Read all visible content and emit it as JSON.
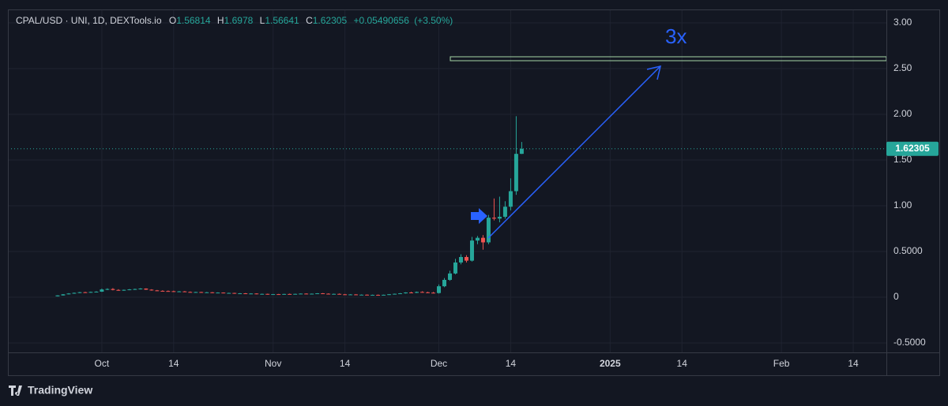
{
  "chart_data": {
    "type": "candlestick",
    "title": "CPAL/USD · UNI, 1D, DEXTools.io",
    "ohlc_labels": [
      "O",
      "H",
      "L",
      "C"
    ],
    "change": {
      "value": 0.05490656,
      "label": "+0.05490656"
    },
    "change_percent": {
      "value": 3.5,
      "label": "(+3.50%)"
    },
    "annotation": "3x",
    "footer": "TradingView",
    "up_color": "#26a69a",
    "down_color": "#ef5350",
    "grid": true,
    "x": [
      "2024-09-23",
      "2024-09-24",
      "2024-09-25",
      "2024-09-26",
      "2024-09-27",
      "2024-09-28",
      "2024-09-29",
      "2024-09-30",
      "2024-10-01",
      "2024-10-02",
      "2024-10-03",
      "2024-10-04",
      "2024-10-05",
      "2024-10-06",
      "2024-10-07",
      "2024-10-08",
      "2024-10-09",
      "2024-10-10",
      "2024-10-11",
      "2024-10-12",
      "2024-10-13",
      "2024-10-14",
      "2024-10-15",
      "2024-10-16",
      "2024-10-17",
      "2024-10-18",
      "2024-10-19",
      "2024-10-20",
      "2024-10-21",
      "2024-10-22",
      "2024-10-23",
      "2024-10-24",
      "2024-10-25",
      "2024-10-26",
      "2024-10-27",
      "2024-10-28",
      "2024-10-29",
      "2024-10-30",
      "2024-10-31",
      "2024-11-01",
      "2024-11-02",
      "2024-11-03",
      "2024-11-04",
      "2024-11-05",
      "2024-11-06",
      "2024-11-07",
      "2024-11-08",
      "2024-11-09",
      "2024-11-10",
      "2024-11-11",
      "2024-11-12",
      "2024-11-13",
      "2024-11-14",
      "2024-11-15",
      "2024-11-16",
      "2024-11-17",
      "2024-11-18",
      "2024-11-19",
      "2024-11-20",
      "2024-11-21",
      "2024-11-22",
      "2024-11-23",
      "2024-11-24",
      "2024-11-25",
      "2024-11-26",
      "2024-11-27",
      "2024-11-28",
      "2024-11-29",
      "2024-11-30",
      "2024-12-01",
      "2024-12-02",
      "2024-12-03",
      "2024-12-04",
      "2024-12-05",
      "2024-12-06",
      "2024-12-07",
      "2024-12-08",
      "2024-12-09",
      "2024-12-10",
      "2024-12-11",
      "2024-12-12",
      "2024-12-13",
      "2024-12-14",
      "2024-12-15",
      "2024-12-16"
    ],
    "open": [
      0.01,
      0.02,
      0.032,
      0.041,
      0.048,
      0.055,
      0.052,
      0.058,
      0.061,
      0.085,
      0.09,
      0.08,
      0.076,
      0.081,
      0.086,
      0.09,
      0.095,
      0.083,
      0.075,
      0.07,
      0.068,
      0.066,
      0.061,
      0.064,
      0.058,
      0.055,
      0.057,
      0.052,
      0.054,
      0.048,
      0.051,
      0.045,
      0.047,
      0.04,
      0.043,
      0.038,
      0.041,
      0.034,
      0.037,
      0.03,
      0.034,
      0.032,
      0.036,
      0.033,
      0.037,
      0.04,
      0.036,
      0.039,
      0.043,
      0.039,
      0.035,
      0.037,
      0.032,
      0.029,
      0.031,
      0.026,
      0.028,
      0.023,
      0.026,
      0.022,
      0.027,
      0.033,
      0.038,
      0.043,
      0.052,
      0.048,
      0.058,
      0.054,
      0.05,
      0.046,
      0.12,
      0.19,
      0.26,
      0.38,
      0.44,
      0.4,
      0.62,
      0.65,
      0.6,
      0.87,
      0.86,
      0.88,
      0.99,
      1.16,
      1.56814
    ],
    "high": [
      0.022,
      0.035,
      0.045,
      0.052,
      0.058,
      0.06,
      0.062,
      0.066,
      0.095,
      0.098,
      0.1,
      0.088,
      0.084,
      0.09,
      0.094,
      0.1,
      0.098,
      0.088,
      0.08,
      0.076,
      0.074,
      0.072,
      0.068,
      0.068,
      0.063,
      0.06,
      0.06,
      0.058,
      0.057,
      0.054,
      0.053,
      0.05,
      0.049,
      0.046,
      0.046,
      0.044,
      0.043,
      0.04,
      0.039,
      0.036,
      0.037,
      0.038,
      0.04,
      0.039,
      0.042,
      0.043,
      0.041,
      0.045,
      0.046,
      0.043,
      0.04,
      0.041,
      0.036,
      0.034,
      0.034,
      0.031,
      0.031,
      0.029,
      0.03,
      0.029,
      0.035,
      0.04,
      0.046,
      0.055,
      0.06,
      0.062,
      0.065,
      0.06,
      0.058,
      0.14,
      0.21,
      0.29,
      0.42,
      0.47,
      0.46,
      0.66,
      0.67,
      0.68,
      0.9,
      1.08,
      1.1,
      1.05,
      1.3,
      1.98,
      1.6978
    ],
    "low": [
      0.008,
      0.018,
      0.03,
      0.038,
      0.044,
      0.05,
      0.049,
      0.054,
      0.058,
      0.078,
      0.075,
      0.072,
      0.07,
      0.077,
      0.08,
      0.085,
      0.08,
      0.072,
      0.066,
      0.064,
      0.062,
      0.058,
      0.056,
      0.056,
      0.052,
      0.05,
      0.05,
      0.048,
      0.046,
      0.045,
      0.043,
      0.04,
      0.038,
      0.037,
      0.036,
      0.034,
      0.032,
      0.03,
      0.028,
      0.027,
      0.03,
      0.029,
      0.031,
      0.03,
      0.033,
      0.034,
      0.032,
      0.036,
      0.037,
      0.033,
      0.031,
      0.03,
      0.027,
      0.025,
      0.024,
      0.022,
      0.021,
      0.02,
      0.02,
      0.019,
      0.025,
      0.03,
      0.035,
      0.04,
      0.045,
      0.046,
      0.05,
      0.045,
      0.042,
      0.04,
      0.11,
      0.18,
      0.25,
      0.36,
      0.38,
      0.39,
      0.58,
      0.52,
      0.58,
      0.84,
      0.82,
      0.86,
      0.95,
      1.12,
      1.56641
    ],
    "close": [
      0.02,
      0.032,
      0.041,
      0.048,
      0.055,
      0.052,
      0.058,
      0.061,
      0.085,
      0.09,
      0.08,
      0.076,
      0.081,
      0.086,
      0.09,
      0.095,
      0.083,
      0.075,
      0.07,
      0.068,
      0.066,
      0.061,
      0.064,
      0.058,
      0.055,
      0.057,
      0.052,
      0.054,
      0.048,
      0.051,
      0.045,
      0.047,
      0.04,
      0.043,
      0.038,
      0.041,
      0.034,
      0.037,
      0.03,
      0.034,
      0.032,
      0.036,
      0.033,
      0.037,
      0.04,
      0.036,
      0.039,
      0.043,
      0.039,
      0.035,
      0.037,
      0.032,
      0.029,
      0.031,
      0.026,
      0.028,
      0.023,
      0.026,
      0.022,
      0.027,
      0.033,
      0.038,
      0.043,
      0.052,
      0.048,
      0.058,
      0.054,
      0.05,
      0.046,
      0.12,
      0.19,
      0.26,
      0.38,
      0.44,
      0.4,
      0.62,
      0.65,
      0.6,
      0.87,
      0.86,
      0.88,
      0.99,
      1.16,
      1.568,
      1.62305
    ],
    "xlim": [
      "2024-09-14",
      "2025-02-20"
    ],
    "xticks": [
      {
        "value": "2024-10-01",
        "label": "Oct"
      },
      {
        "value": "2024-10-14",
        "label": "14"
      },
      {
        "value": "2024-11-01",
        "label": "Nov"
      },
      {
        "value": "2024-11-14",
        "label": "14"
      },
      {
        "value": "2024-12-01",
        "label": "Dec"
      },
      {
        "value": "2024-12-14",
        "label": "14"
      },
      {
        "value": "2025-01-01",
        "label": "2025"
      },
      {
        "value": "2025-01-14",
        "label": "14"
      },
      {
        "value": "2025-02-01",
        "label": "Feb"
      },
      {
        "value": "2025-02-14",
        "label": "14"
      }
    ],
    "ylim": [
      -0.603,
      3.147
    ],
    "yticks": [
      {
        "value": 3,
        "label": "3.00"
      },
      {
        "value": 2.5,
        "label": "2.50"
      },
      {
        "value": 2,
        "label": "2.00"
      },
      {
        "value": 1.5,
        "label": "1.50"
      },
      {
        "value": 1,
        "label": "1.00"
      },
      {
        "value": 0.5,
        "label": "0.5000"
      },
      0,
      {
        "value": -0.5,
        "label": "-0.5000"
      }
    ]
  }
}
